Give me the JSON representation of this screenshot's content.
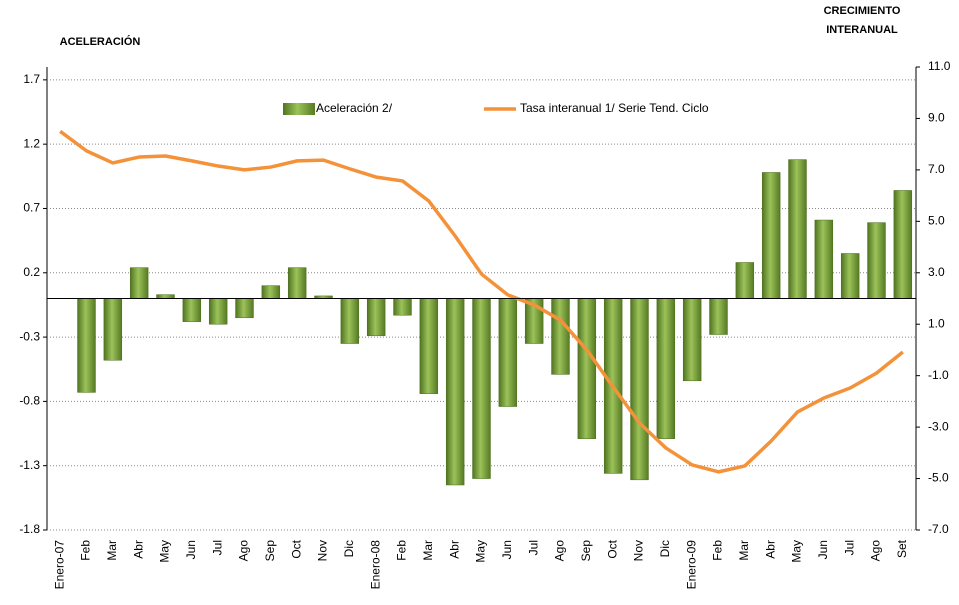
{
  "chart_data": {
    "type": "bar",
    "y_label": "ACELERACIÓN",
    "y2_label": [
      "CRECIMIENTO",
      "INTERANUAL"
    ],
    "categories": [
      "Enero-07",
      "Feb",
      "Mar",
      "Abr",
      "May",
      "Jun",
      "Jul",
      "Ago",
      "Sep",
      "Oct",
      "Nov",
      "Dic",
      "Enero-08",
      "Feb",
      "Mar",
      "Abr",
      "May",
      "Jun",
      "Jul",
      "Ago",
      "Sep",
      "Oct",
      "Nov",
      "Dic",
      "Enero-09",
      "Feb",
      "Mar",
      "Abr",
      "May",
      "Jun",
      "Jul",
      "Ago",
      "Set"
    ],
    "series": [
      {
        "name": "Aceleración 2/",
        "type": "bar",
        "color": "#6f9a2e",
        "values": [
          0,
          -0.73,
          -0.48,
          0.24,
          0.03,
          -0.18,
          -0.2,
          -0.15,
          0.1,
          0.24,
          0.02,
          -0.35,
          -0.29,
          -0.13,
          -0.74,
          -1.45,
          -1.4,
          -0.84,
          -0.35,
          -0.59,
          -1.09,
          -1.36,
          -1.41,
          -1.09,
          -0.64,
          -0.28,
          0.28,
          0.98,
          1.08,
          0.61,
          0.35,
          0.59,
          0.84
        ]
      },
      {
        "name": "Tasa interanual 1/ Serie Tend. Ciclo",
        "type": "line",
        "axis": "y2",
        "color": "#f4923a",
        "values": [
          8.5,
          7.74,
          7.27,
          7.5,
          7.54,
          7.35,
          7.15,
          7.0,
          7.11,
          7.35,
          7.38,
          7.04,
          6.72,
          6.57,
          5.79,
          4.43,
          2.95,
          2.14,
          1.75,
          1.16,
          0.0,
          -1.44,
          -2.84,
          -3.81,
          -4.47,
          -4.74,
          -4.51,
          -3.54,
          -2.41,
          -1.87,
          -1.48,
          -0.9,
          -0.08
        ]
      }
    ],
    "ylim": [
      -1.8,
      1.8
    ],
    "yticks": [
      1.7,
      1.2,
      0.7,
      0.2,
      -0.3,
      -0.8,
      -1.3,
      -1.8
    ],
    "y2lim": [
      -7,
      11
    ],
    "y2ticks": [
      {
        "value": 11,
        "label": "11.0"
      },
      {
        "value": 9,
        "label": "9.0"
      },
      {
        "value": 7,
        "label": "7.0"
      },
      {
        "value": 5,
        "label": "5.0"
      },
      {
        "value": 3,
        "label": "3.0"
      },
      {
        "value": 1,
        "label": "1.0"
      },
      {
        "value": -1,
        "label": "-1.0"
      },
      {
        "value": -3,
        "label": "-3.0"
      },
      {
        "value": -5,
        "label": "-5.0"
      },
      {
        "value": -7,
        "label": "-7.0"
      }
    ],
    "grid": true
  }
}
